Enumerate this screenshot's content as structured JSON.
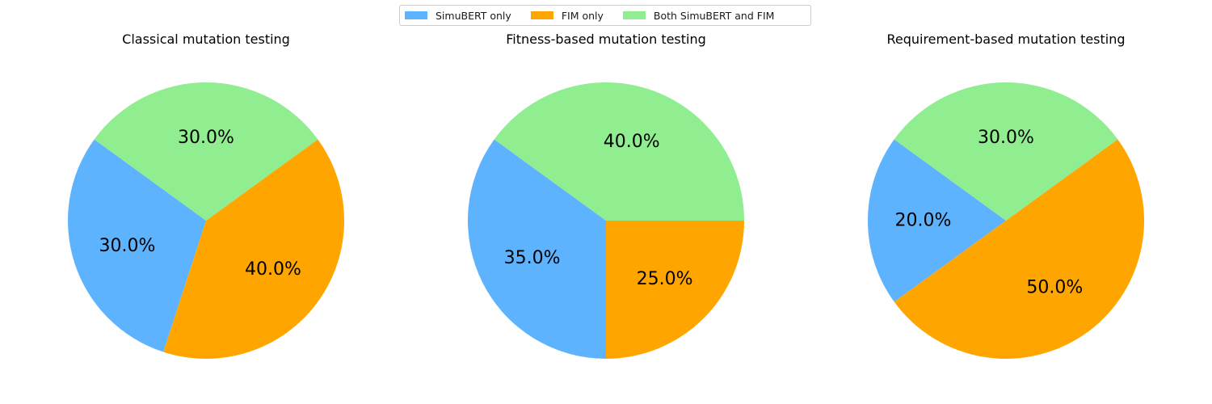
{
  "legend": {
    "entries": [
      {
        "label": "SimuBERT only",
        "color": "#5eb3ff"
      },
      {
        "label": "FIM only",
        "color": "#ffa500"
      },
      {
        "label": "Both SimuBERT and FIM",
        "color": "#90ee90"
      }
    ]
  },
  "chart_data": [
    {
      "type": "pie",
      "title": "Classical mutation testing",
      "categories": [
        "SimuBERT only",
        "FIM only",
        "Both SimuBERT and FIM"
      ],
      "values": [
        30,
        40,
        30
      ],
      "labels": [
        "30.0%",
        "40.0%",
        "30.0%"
      ],
      "colors": [
        "#5eb3ff",
        "#ffa500",
        "#90ee90"
      ],
      "start_angle_deg": 144,
      "direction": "counterclockwise"
    },
    {
      "type": "pie",
      "title": "Fitness-based mutation testing",
      "categories": [
        "SimuBERT only",
        "FIM only",
        "Both SimuBERT and FIM"
      ],
      "values": [
        35,
        25,
        40
      ],
      "labels": [
        "35.0%",
        "25.0%",
        "40.0%"
      ],
      "colors": [
        "#5eb3ff",
        "#ffa500",
        "#90ee90"
      ],
      "start_angle_deg": 144,
      "direction": "counterclockwise"
    },
    {
      "type": "pie",
      "title": "Requirement-based mutation testing",
      "categories": [
        "SimuBERT only",
        "FIM only",
        "Both SimuBERT and FIM"
      ],
      "values": [
        20,
        50,
        30
      ],
      "labels": [
        "20.0%",
        "50.0%",
        "30.0%"
      ],
      "colors": [
        "#5eb3ff",
        "#ffa500",
        "#90ee90"
      ],
      "start_angle_deg": 144,
      "direction": "counterclockwise"
    }
  ]
}
